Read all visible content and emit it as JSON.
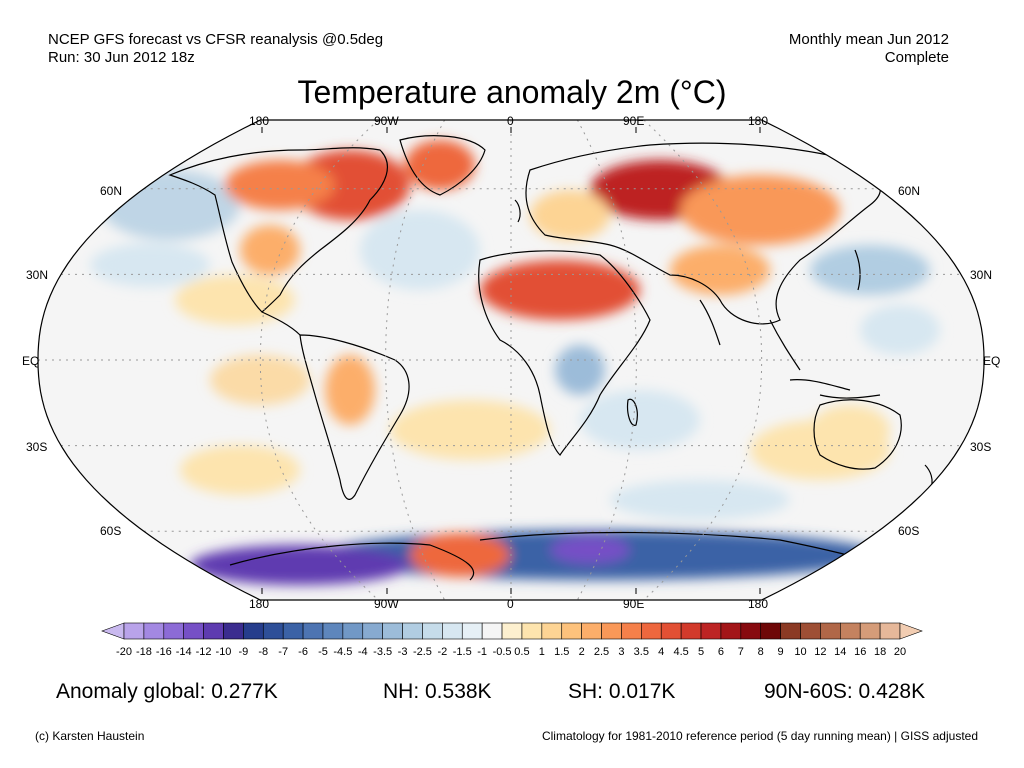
{
  "header": {
    "left_line1": "NCEP GFS forecast vs CFSR reanalysis @0.5deg",
    "left_line2": "Run: 30 Jun 2012 18z",
    "right_line1": "Monthly mean Jun 2012",
    "right_line2": "Complete"
  },
  "title": "Temperature anomaly 2m (°C)",
  "map": {
    "projection": "robinson",
    "lon_labels_top": [
      "180",
      "90W",
      "0",
      "90E",
      "180"
    ],
    "lon_labels_bottom": [
      "180",
      "90W",
      "0",
      "90E",
      "180"
    ],
    "lat_labels_left": [
      "60N",
      "30N",
      "EQ",
      "30S",
      "60S"
    ],
    "lat_labels_right": [
      "60N",
      "30N",
      "EQ",
      "30S",
      "60S"
    ],
    "ocean_color": "#f5f5f5",
    "gridline_style": "dotted"
  },
  "colorbar": {
    "labels": [
      "-20",
      "-18",
      "-16",
      "-14",
      "-12",
      "-10",
      "-9",
      "-8",
      "-7",
      "-6",
      "-5",
      "-4.5",
      "-4",
      "-3.5",
      "-3",
      "-2.5",
      "-2",
      "-1.5",
      "-1",
      "-0.5",
      "0.5",
      "1",
      "1.5",
      "2",
      "2.5",
      "3",
      "3.5",
      "4",
      "4.5",
      "5",
      "6",
      "7",
      "8",
      "9",
      "10",
      "12",
      "14",
      "16",
      "18",
      "20"
    ],
    "colors": [
      "#c9b9ef",
      "#b9a3ea",
      "#a388e2",
      "#8c6bd6",
      "#7650c6",
      "#5e3bb0",
      "#3b2c8f",
      "#263d8c",
      "#2e4f98",
      "#3b62a6",
      "#4d74b2",
      "#5e86bc",
      "#7198c6",
      "#87aad0",
      "#9cbcd9",
      "#b1cde2",
      "#c6dcea",
      "#d7e7f1",
      "#e6f0f6",
      "#f5f5f5",
      "#fdf0cf",
      "#fde4ae",
      "#fdd494",
      "#fdc27c",
      "#fcae6a",
      "#f99858",
      "#f5804a",
      "#ee673e",
      "#e25034",
      "#d23a2b",
      "#bd2424",
      "#a31518",
      "#870a0f",
      "#6e0808",
      "#8b3a24",
      "#9e4f35",
      "#b06748",
      "#c4825f",
      "#d59c79",
      "#e6b89a",
      "#f2cdb2"
    ]
  },
  "stats": {
    "global": "Anomaly global: 0.277K",
    "nh": "NH: 0.538K",
    "sh": "SH: 0.017K",
    "arctic": "90N-60S: 0.428K"
  },
  "footer": {
    "left": "(c) Karsten Haustein",
    "right": "Climatology for 1981-2010 reference period (5 day running mean) | GISS adjusted"
  }
}
